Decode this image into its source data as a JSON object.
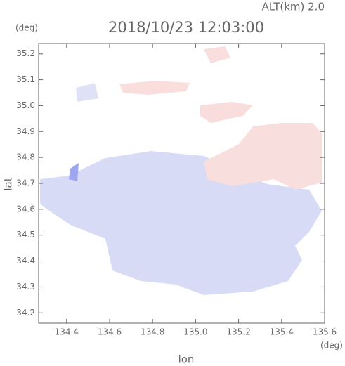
{
  "chart_data": {
    "type": "map",
    "title": "2018/10/23 12:03:00",
    "subtitle": "ALT(km) 2.0",
    "x_label": "lon",
    "y_label": "lat",
    "x_unit": "(deg)",
    "y_unit": "(deg)",
    "xlim": [
      134.27,
      135.6
    ],
    "ylim": [
      34.16,
      35.24
    ],
    "xticks": [
      134.4,
      134.6,
      134.8,
      {
        "value": 135,
        "label": "135.0"
      },
      135.2,
      135.4,
      135.6
    ],
    "yticks": [
      34.2,
      34.3,
      34.4,
      34.5,
      34.6,
      34.7,
      34.8,
      34.9,
      {
        "value": 35,
        "label": "35.0"
      },
      35.1,
      35.2
    ]
  }
}
